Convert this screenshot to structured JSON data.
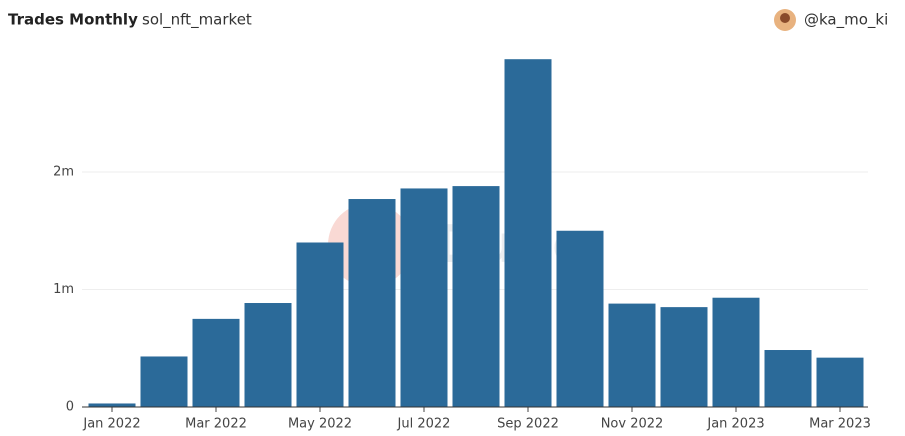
{
  "header": {
    "title": "Trades Monthly",
    "subtitle": "sol_nft_market",
    "user": "@ka_mo_ki"
  },
  "chart_data": {
    "type": "bar",
    "watermark": "Dune",
    "categories": [
      "Jan 2022",
      null,
      "Mar 2022",
      null,
      "May 2022",
      null,
      "Jul 2022",
      null,
      "Sep 2022",
      null,
      "Nov 2022",
      null,
      "Jan 2023",
      null,
      "Mar 2023"
    ],
    "values": [
      30000,
      430000,
      750000,
      885000,
      1400000,
      1770000,
      1860000,
      1880000,
      2960000,
      1500000,
      880000,
      850000,
      930000,
      485000,
      420000
    ],
    "color": "#2b6a99",
    "ylim": [
      0,
      3000000
    ],
    "yticks": [
      0,
      {
        "value": 1000000,
        "label": "1m"
      },
      {
        "value": 2000000,
        "label": "2m"
      }
    ],
    "grid": true
  }
}
